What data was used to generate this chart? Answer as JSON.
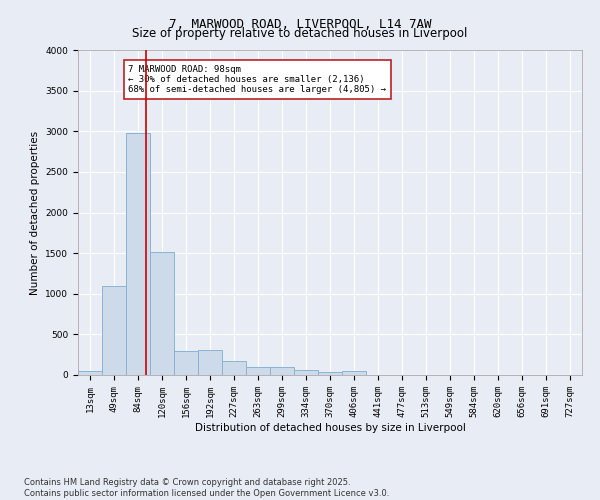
{
  "title": "7, MARWOOD ROAD, LIVERPOOL, L14 7AW",
  "subtitle": "Size of property relative to detached houses in Liverpool",
  "xlabel": "Distribution of detached houses by size in Liverpool",
  "ylabel": "Number of detached properties",
  "footnote": "Contains HM Land Registry data © Crown copyright and database right 2025.\nContains public sector information licensed under the Open Government Licence v3.0.",
  "categories": [
    "13sqm",
    "49sqm",
    "84sqm",
    "120sqm",
    "156sqm",
    "192sqm",
    "227sqm",
    "263sqm",
    "299sqm",
    "334sqm",
    "370sqm",
    "406sqm",
    "441sqm",
    "477sqm",
    "513sqm",
    "549sqm",
    "584sqm",
    "620sqm",
    "656sqm",
    "691sqm",
    "727sqm"
  ],
  "values": [
    50,
    1100,
    2980,
    1520,
    300,
    310,
    175,
    100,
    100,
    60,
    40,
    50,
    0,
    0,
    0,
    0,
    0,
    0,
    0,
    0,
    0
  ],
  "bar_color": "#ccdaea",
  "bar_edge_color": "#8ab4d4",
  "vline_x": 2.33,
  "vline_color": "#cc0000",
  "annotation_text": "7 MARWOOD ROAD: 98sqm\n← 30% of detached houses are smaller (2,136)\n68% of semi-detached houses are larger (4,805) →",
  "annotation_box_color": "#bb2222",
  "ylim": [
    0,
    4000
  ],
  "yticks": [
    0,
    500,
    1000,
    1500,
    2000,
    2500,
    3000,
    3500,
    4000
  ],
  "background_color": "#e8edf5",
  "plot_background_color": "#e8edf5",
  "title_fontsize": 9,
  "subtitle_fontsize": 8.5,
  "grid_color": "#ffffff",
  "annotation_fontsize": 6.5,
  "axis_label_fontsize": 7.5,
  "tick_fontsize": 6.5,
  "ylabel_fontsize": 7.5
}
